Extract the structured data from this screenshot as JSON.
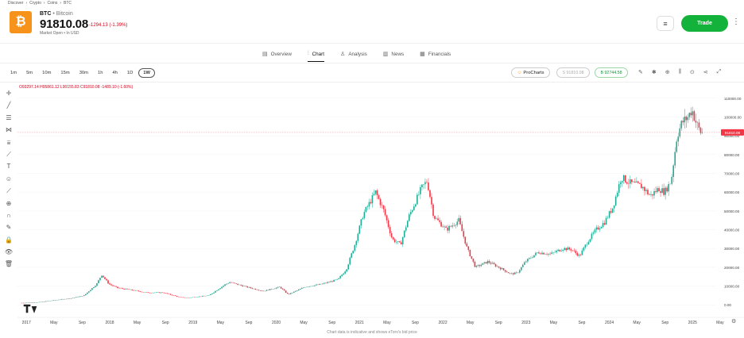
{
  "breadcrumb": [
    "Discover",
    "›",
    "Crypto",
    "›",
    "Coins",
    "›",
    "BTC"
  ],
  "asset": {
    "symbol": "BTC",
    "separator": "•",
    "name": "Bitcoin",
    "logo_glyph": "₿",
    "price": "91810.08",
    "change": "-1294.13 (-1.39%)",
    "status": "Market Open • In USD"
  },
  "header": {
    "list_icon": "≡",
    "trade_label": "Trade",
    "more_icon": "⋮"
  },
  "tabs": [
    {
      "label": "Overview",
      "icon": "▤"
    },
    {
      "label": "Chart",
      "icon": "⫶"
    },
    {
      "label": "Analysis",
      "icon": "♙"
    },
    {
      "label": "News",
      "icon": "▥"
    },
    {
      "label": "Financials",
      "icon": "▦"
    }
  ],
  "timeframes": [
    "1m",
    "5m",
    "10m",
    "15m",
    "30m",
    "1h",
    "4h",
    "1D",
    "1W"
  ],
  "active_timeframe": "1W",
  "prochart_label": "ProCharts",
  "prochart_icon": "☺",
  "sell_label": "S 91810.08",
  "buy_label": "B 92744.58",
  "toolbar_icons": [
    "✎",
    "✱",
    "⊕",
    "⫼",
    "⊙",
    "⋖",
    "⤢"
  ],
  "left_tools": [
    "✛",
    "╱",
    "☰",
    "⋈",
    "⩸",
    "⟋",
    "T",
    "☺",
    "⟋",
    "⊕",
    "∩",
    "✎",
    "🔒",
    "👁",
    "🗑"
  ],
  "ohlc_text": "O93297.14 H95861.12 L90155.83 C91810.08 -1489.10 (-1.60%)",
  "footer_note": "Chart data is indicative and shows eToro's bid price",
  "settings_icon": "⚙",
  "colors": {
    "up": "#22ab94",
    "down": "#f23645",
    "trade": "#13b23b",
    "logo": "#f7931a"
  },
  "chart_data": {
    "type": "candlestick",
    "price_scale_labels": [
      "110000.00",
      "100000.00",
      "90000.00",
      "80000.00",
      "70000.00",
      "60000.00",
      "50000.00",
      "40000.00",
      "30000.00",
      "20000.00",
      "10000.00",
      "0.00"
    ],
    "current_price_label": "91810.08",
    "x_labels": [
      "2017",
      "May",
      "Sep",
      "2018",
      "May",
      "Sep",
      "2019",
      "May",
      "Sep",
      "2020",
      "May",
      "Sep",
      "2021",
      "May",
      "Sep",
      "2022",
      "May",
      "Sep",
      "2023",
      "May",
      "Sep",
      "2024",
      "May",
      "Sep",
      "2025",
      "May"
    ],
    "ylim": [
      -5000,
      115000
    ],
    "trend": [
      [
        2017.0,
        1000
      ],
      [
        2017.2,
        1300
      ],
      [
        2017.4,
        2500
      ],
      [
        2017.6,
        3500
      ],
      [
        2017.75,
        5000
      ],
      [
        2017.9,
        11000
      ],
      [
        2017.96,
        16000
      ],
      [
        2018.05,
        11000
      ],
      [
        2018.15,
        9000
      ],
      [
        2018.3,
        8000
      ],
      [
        2018.5,
        6500
      ],
      [
        2018.7,
        6500
      ],
      [
        2018.9,
        4000
      ],
      [
        2019.0,
        3700
      ],
      [
        2019.25,
        5000
      ],
      [
        2019.45,
        11000
      ],
      [
        2019.5,
        12000
      ],
      [
        2019.7,
        9500
      ],
      [
        2019.9,
        7300
      ],
      [
        2020.1,
        9500
      ],
      [
        2020.2,
        5500
      ],
      [
        2020.4,
        9500
      ],
      [
        2020.6,
        11000
      ],
      [
        2020.8,
        13500
      ],
      [
        2020.9,
        19000
      ],
      [
        2021.0,
        32000
      ],
      [
        2021.1,
        48000
      ],
      [
        2021.25,
        60000
      ],
      [
        2021.35,
        50000
      ],
      [
        2021.45,
        35000
      ],
      [
        2021.55,
        32000
      ],
      [
        2021.65,
        47000
      ],
      [
        2021.8,
        62000
      ],
      [
        2021.87,
        66000
      ],
      [
        2021.95,
        47000
      ],
      [
        2022.1,
        40000
      ],
      [
        2022.25,
        45000
      ],
      [
        2022.35,
        30000
      ],
      [
        2022.45,
        20000
      ],
      [
        2022.6,
        23000
      ],
      [
        2022.75,
        19500
      ],
      [
        2022.87,
        16500
      ],
      [
        2022.95,
        16800
      ],
      [
        2023.05,
        23000
      ],
      [
        2023.2,
        28000
      ],
      [
        2023.35,
        27000
      ],
      [
        2023.5,
        30000
      ],
      [
        2023.6,
        29500
      ],
      [
        2023.7,
        26000
      ],
      [
        2023.8,
        34000
      ],
      [
        2023.9,
        40000
      ],
      [
        2024.0,
        44000
      ],
      [
        2024.1,
        52000
      ],
      [
        2024.2,
        68000
      ],
      [
        2024.3,
        65000
      ],
      [
        2024.45,
        63000
      ],
      [
        2024.55,
        58000
      ],
      [
        2024.65,
        62000
      ],
      [
        2024.72,
        60000
      ],
      [
        2024.8,
        66000
      ],
      [
        2024.87,
        90000
      ],
      [
        2024.93,
        97000
      ],
      [
        2025.0,
        100000
      ],
      [
        2025.05,
        104000
      ],
      [
        2025.1,
        97000
      ],
      [
        2025.15,
        92000
      ],
      [
        2025.17,
        91810
      ]
    ]
  }
}
